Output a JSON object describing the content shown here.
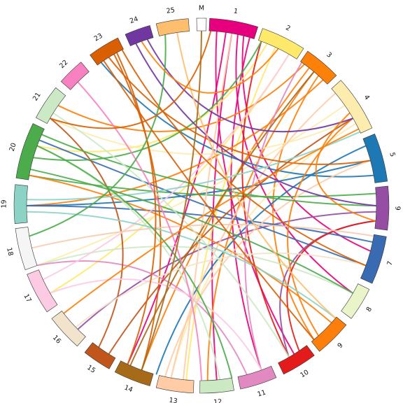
{
  "diagram": {
    "type": "circos-chord",
    "segments": [
      {
        "label": "M",
        "color": "#ffffff",
        "start": -1.5,
        "end": 1.5
      },
      {
        "label": "1",
        "color": "#e7007d",
        "start": 2.5,
        "end": 17.5
      },
      {
        "label": "2",
        "color": "#ffe96b",
        "start": 19.0,
        "end": 33.0
      },
      {
        "label": "3",
        "color": "#fd8009",
        "start": 34.5,
        "end": 46.0
      },
      {
        "label": "4",
        "color": "#fcecae",
        "start": 48.0,
        "end": 65.5
      },
      {
        "label": "5",
        "color": "#1e78b4",
        "start": 67.5,
        "end": 82.5
      },
      {
        "label": "6",
        "color": "#954ea3",
        "start": 84.0,
        "end": 97.5
      },
      {
        "label": "7",
        "color": "#386bb2",
        "start": 99.5,
        "end": 114.5
      },
      {
        "label": "8",
        "color": "#e9f5c8",
        "start": 116.5,
        "end": 127.0
      },
      {
        "label": "9",
        "color": "#fd7e0b",
        "start": 129.5,
        "end": 141.0
      },
      {
        "label": "10",
        "color": "#e41b1b",
        "start": 143.0,
        "end": 154.0
      },
      {
        "label": "11",
        "color": "#e289c1",
        "start": 156.5,
        "end": 168.0
      },
      {
        "label": "12",
        "color": "#cbe9c2",
        "start": 170.0,
        "end": 180.5
      },
      {
        "label": "13",
        "color": "#ffcca5",
        "start": 182.5,
        "end": 194.0
      },
      {
        "label": "14",
        "color": "#a76a18",
        "start": 196.0,
        "end": 207.5
      },
      {
        "label": "15",
        "color": "#c0561b",
        "start": 209.5,
        "end": 218.5
      },
      {
        "label": "16",
        "color": "#f2e3cc",
        "start": 221.5,
        "end": 233.0
      },
      {
        "label": "17",
        "color": "#fdcae3",
        "start": 235.5,
        "end": 248.5
      },
      {
        "label": "18",
        "color": "#f5f5f5",
        "start": 250.0,
        "end": 263.0
      },
      {
        "label": "19",
        "color": "#8dd3c5",
        "start": 264.5,
        "end": 276.5
      },
      {
        "label": "20",
        "color": "#4cac4b",
        "start": 278.5,
        "end": 296.0
      },
      {
        "label": "21",
        "color": "#cce9c5",
        "start": 298.0,
        "end": 309.0
      },
      {
        "label": "22",
        "color": "#f781c1",
        "start": 311.5,
        "end": 320.0
      },
      {
        "label": "23",
        "color": "#d95f02",
        "start": 323.5,
        "end": 333.5
      },
      {
        "label": "24",
        "color": "#7137a1",
        "start": 336.0,
        "end": 344.0
      },
      {
        "label": "25",
        "color": "#fdbe6e",
        "start": 346.0,
        "end": 356.0
      }
    ],
    "links": [
      {
        "from": 10,
        "to": 175,
        "color": "#e7007d"
      },
      {
        "from": 5,
        "to": 148,
        "color": "#e7007d"
      },
      {
        "from": 14,
        "to": 105,
        "color": "#e7007d"
      },
      {
        "from": 8,
        "to": 205,
        "color": "#e7007d"
      },
      {
        "from": 12,
        "to": 120,
        "color": "#e7007d"
      },
      {
        "from": 16,
        "to": 160,
        "color": "#e7007d"
      },
      {
        "from": 30,
        "to": 240,
        "color": "#ffe96b"
      },
      {
        "from": 25,
        "to": 185,
        "color": "#ffe96b"
      },
      {
        "from": 22,
        "to": 290,
        "color": "#ffe96b"
      },
      {
        "from": 38,
        "to": 200,
        "color": "#fd8009"
      },
      {
        "from": 42,
        "to": 140,
        "color": "#fd8009"
      },
      {
        "from": 44,
        "to": 270,
        "color": "#fd8009"
      },
      {
        "from": 40,
        "to": 178,
        "color": "#fd8009"
      },
      {
        "from": 36,
        "to": 305,
        "color": "#fd8009"
      },
      {
        "from": 55,
        "to": 250,
        "color": "#fcecae"
      },
      {
        "from": 60,
        "to": 300,
        "color": "#fcecae"
      },
      {
        "from": 62,
        "to": 190,
        "color": "#fcecae"
      },
      {
        "from": 70,
        "to": 195,
        "color": "#1e78b4"
      },
      {
        "from": 75,
        "to": 270,
        "color": "#1e78b4"
      },
      {
        "from": 80,
        "to": 325,
        "color": "#1e78b4"
      },
      {
        "from": 86,
        "to": 280,
        "color": "#4cac4b"
      },
      {
        "from": 92,
        "to": 225,
        "color": "#954ea3"
      },
      {
        "from": 95,
        "to": 150,
        "color": "#954ea3"
      },
      {
        "from": 102,
        "to": 270,
        "color": "#386bb2"
      },
      {
        "from": 110,
        "to": 292,
        "color": "#386bb2"
      },
      {
        "from": 120,
        "to": 250,
        "color": "#cce9c5"
      },
      {
        "from": 132,
        "to": 280,
        "color": "#fd7e0b"
      },
      {
        "from": 138,
        "to": 60,
        "color": "#fd7e0b"
      },
      {
        "from": 146,
        "to": 95,
        "color": "#e41b1b"
      },
      {
        "from": 150,
        "to": 20,
        "color": "#e41b1b"
      },
      {
        "from": 160,
        "to": 35,
        "color": "#e289c1"
      },
      {
        "from": 165,
        "to": 250,
        "color": "#e289c1"
      },
      {
        "from": 174,
        "to": 290,
        "color": "#cbe9c2"
      },
      {
        "from": 186,
        "to": 10,
        "color": "#ffcca5"
      },
      {
        "from": 190,
        "to": 50,
        "color": "#ffcca5"
      },
      {
        "from": 192,
        "to": 75,
        "color": "#ffcca5"
      },
      {
        "from": 200,
        "to": 330,
        "color": "#d95f02"
      },
      {
        "from": 204,
        "to": 40,
        "color": "#a76a18"
      },
      {
        "from": 212,
        "to": 60,
        "color": "#c0561b"
      },
      {
        "from": 216,
        "to": 300,
        "color": "#c0561b"
      },
      {
        "from": 226,
        "to": 110,
        "color": "#f2e3cc"
      },
      {
        "from": 240,
        "to": 160,
        "color": "#fdcae3"
      },
      {
        "from": 245,
        "to": 30,
        "color": "#fdcae3"
      },
      {
        "from": 256,
        "to": 100,
        "color": "#f5cbb0"
      },
      {
        "from": 268,
        "to": 130,
        "color": "#8dd3c5"
      },
      {
        "from": 272,
        "to": 65,
        "color": "#8dd3c5"
      },
      {
        "from": 282,
        "to": 120,
        "color": "#4cac4b"
      },
      {
        "from": 286,
        "to": 20,
        "color": "#4cac4b"
      },
      {
        "from": 290,
        "to": 170,
        "color": "#4cac4b"
      },
      {
        "from": 294,
        "to": 90,
        "color": "#4cac4b"
      },
      {
        "from": 302,
        "to": 150,
        "color": "#cce9c5"
      },
      {
        "from": 315,
        "to": 180,
        "color": "#f781c1"
      },
      {
        "from": 326,
        "to": 140,
        "color": "#d95f02"
      },
      {
        "from": 328,
        "to": 75,
        "color": "#d95f02"
      },
      {
        "from": 331,
        "to": 205,
        "color": "#d95f02"
      },
      {
        "from": 333,
        "to": 110,
        "color": "#d95f02"
      },
      {
        "from": 338,
        "to": 90,
        "color": "#7137a1"
      },
      {
        "from": 342,
        "to": 60,
        "color": "#7137a1"
      },
      {
        "from": 348,
        "to": 260,
        "color": "#4cac4b"
      },
      {
        "from": 352,
        "to": 130,
        "color": "#fdbe6e"
      },
      {
        "from": 0,
        "to": 200,
        "color": "#a76a18"
      },
      {
        "from": 3,
        "to": 300,
        "color": "#d95f02"
      },
      {
        "from": 26,
        "to": 340,
        "color": "#fd8009"
      },
      {
        "from": 58,
        "to": 95,
        "color": "#fd8009"
      },
      {
        "from": 64,
        "to": 232,
        "color": "#fd8009"
      }
    ]
  }
}
